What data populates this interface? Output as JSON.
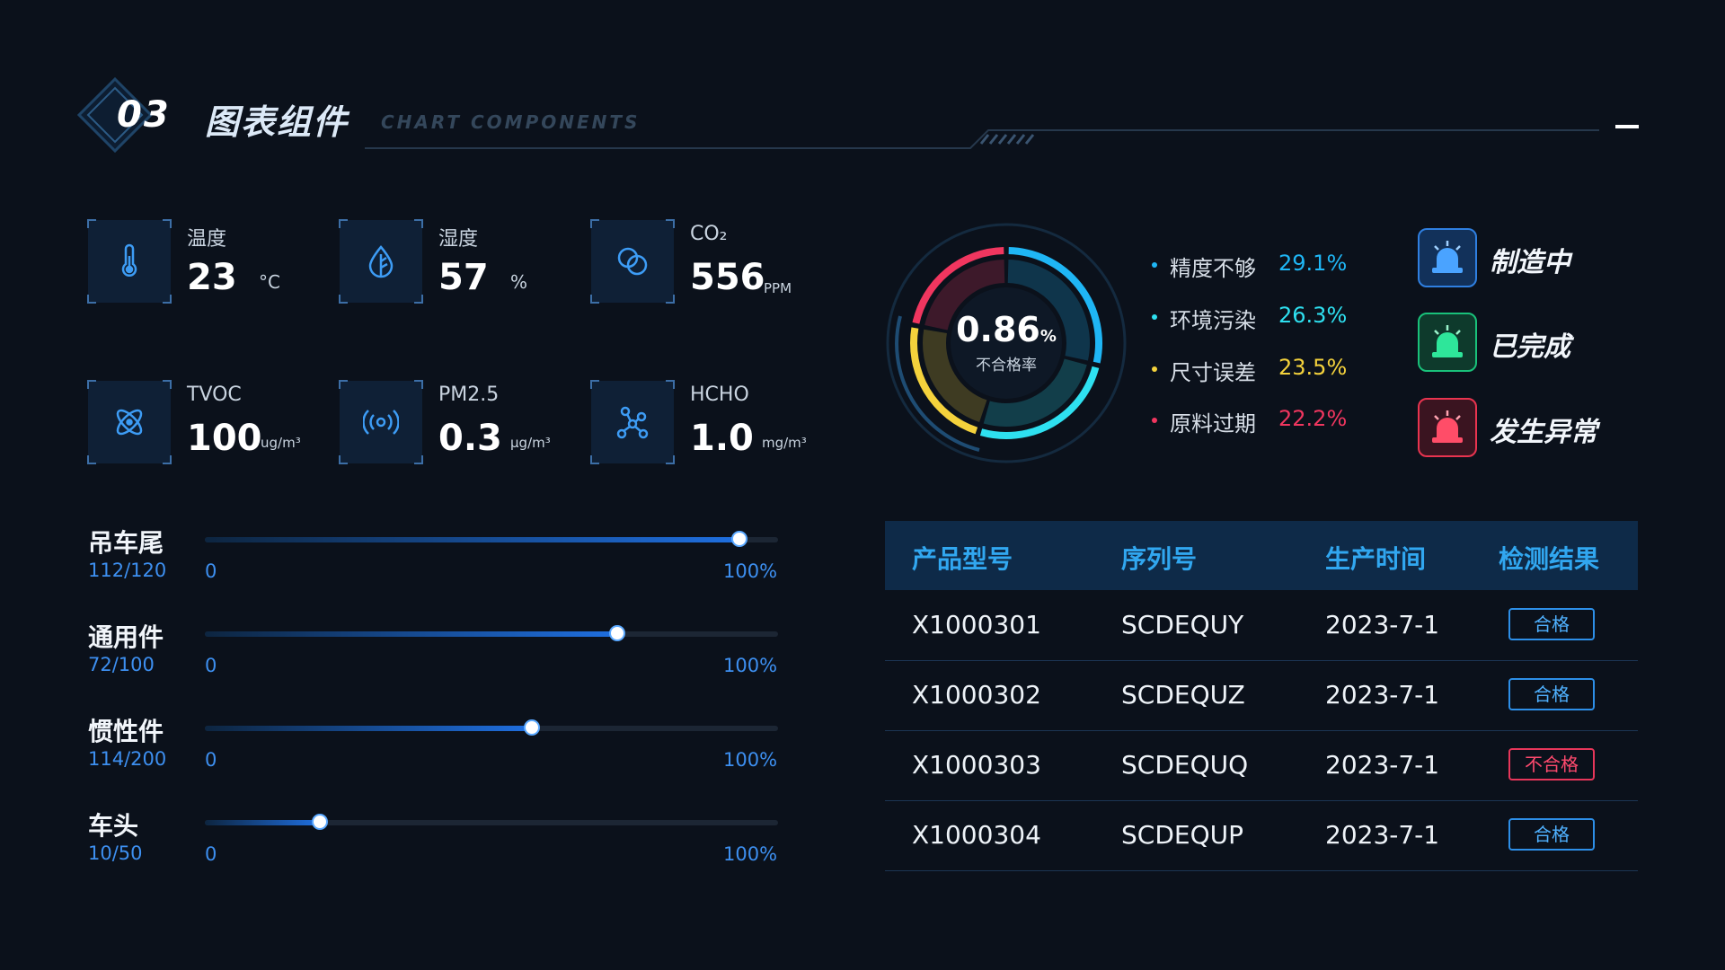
{
  "header": {
    "number": "03",
    "title": "图表组件",
    "subtitle": "CHART COMPONENTS"
  },
  "sensors": [
    {
      "label": "温度",
      "value": "23",
      "unit": "°C",
      "icon": "thermometer-icon"
    },
    {
      "label": "湿度",
      "value": "57",
      "unit": "%",
      "icon": "droplet-icon"
    },
    {
      "label": "CO₂",
      "value": "556",
      "unit": "PPM",
      "icon": "bubbles-icon"
    },
    {
      "label": "TVOC",
      "value": "100",
      "unit": "ug/m³",
      "icon": "atom-icon"
    },
    {
      "label": "PM2.5",
      "value": "0.3",
      "unit": "μg/m³",
      "icon": "signal-icon"
    },
    {
      "label": "HCHO",
      "value": "1.0",
      "unit": "mg/m³",
      "icon": "molecule-icon"
    }
  ],
  "progress": [
    {
      "name": "吊车尾",
      "count": "112/120",
      "fraction": 0.9333,
      "min": "0",
      "max": "100%"
    },
    {
      "name": "通用件",
      "count": "72/100",
      "fraction": 0.72,
      "min": "0",
      "max": "100%"
    },
    {
      "name": "惯性件",
      "count": "114/200",
      "fraction": 0.57,
      "min": "0",
      "max": "100%"
    },
    {
      "name": "车头",
      "count": "10/50",
      "fraction": 0.2,
      "min": "0",
      "max": "100%"
    }
  ],
  "donut": {
    "center_value": "0.86",
    "center_unit": "%",
    "center_label": "不合格率"
  },
  "chart_data": {
    "type": "pie",
    "categories": [
      "精度不够",
      "环境污染",
      "尺寸误差",
      "原料过期"
    ],
    "values": [
      29.1,
      26.3,
      23.5,
      22.2
    ],
    "value_labels": [
      "29.1%",
      "26.3%",
      "23.5%",
      "22.2%"
    ],
    "colors": [
      "#1fb6f5",
      "#2ee0f0",
      "#f4d23c",
      "#f0365f"
    ]
  },
  "status": [
    {
      "label": "制造中",
      "icon": "siren-blue-icon",
      "color": "#2f7fe0"
    },
    {
      "label": "已完成",
      "icon": "siren-green-icon",
      "color": "#19c17a"
    },
    {
      "label": "发生异常",
      "icon": "siren-red-icon",
      "color": "#e8344f"
    }
  ],
  "table": {
    "headers": [
      "产品型号",
      "序列号",
      "生产时间",
      "检测结果"
    ],
    "rows": [
      {
        "model": "X1000301",
        "serial": "SCDEQUY",
        "date": "2023-7-1",
        "result": "合格",
        "ok": true
      },
      {
        "model": "X1000302",
        "serial": "SCDEQUZ",
        "date": "2023-7-1",
        "result": "合格",
        "ok": true
      },
      {
        "model": "X1000303",
        "serial": "SCDEQUQ",
        "date": "2023-7-1",
        "result": "不合格",
        "ok": false
      },
      {
        "model": "X1000304",
        "serial": "SCDEQUP",
        "date": "2023-7-1",
        "result": "合格",
        "ok": true
      }
    ]
  }
}
